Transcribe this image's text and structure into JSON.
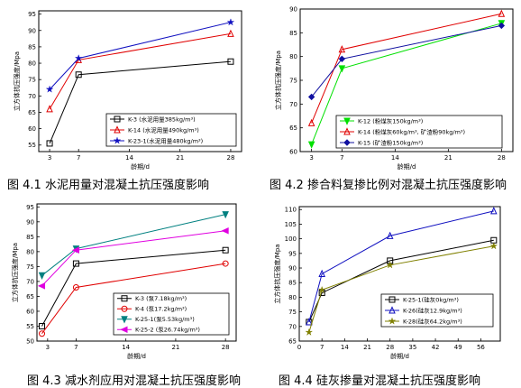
{
  "chart_data": [
    {
      "type": "line",
      "ylabel": "立方体抗压强度/Mpa",
      "xlabel": "龄期/d",
      "xticks": [
        3,
        7,
        14,
        21,
        28
      ],
      "yticks": [
        55,
        60,
        65,
        70,
        75,
        80,
        85,
        90,
        95
      ],
      "xlim": [
        1.5,
        29.5
      ],
      "ylim": [
        53,
        96
      ],
      "caption": "图 4.1 水泥用量对混凝土抗压强度影响",
      "series": [
        {
          "name": "K-3 (水泥用量385kg/m³)",
          "color": "#000000",
          "marker": "square",
          "x": [
            3,
            7,
            28
          ],
          "y": [
            55.5,
            76.5,
            80.5
          ]
        },
        {
          "name": "K-14 (水泥用量490kg/m³)",
          "color": "#e00000",
          "marker": "triangle",
          "x": [
            3,
            7,
            28
          ],
          "y": [
            66,
            81,
            89
          ]
        },
        {
          "name": "K-23-1(水泥用量480kg/m³)",
          "color": "#1010c0",
          "marker": "star",
          "x": [
            3,
            7,
            28
          ],
          "y": [
            72,
            81.5,
            92.5
          ]
        }
      ]
    },
    {
      "type": "line",
      "ylabel": "立方体抗压强度/Mpa",
      "xlabel": "龄期/d",
      "xticks": [
        3,
        7,
        14,
        21,
        28
      ],
      "yticks": [
        60,
        65,
        70,
        75,
        80,
        85,
        90
      ],
      "xlim": [
        1.5,
        29.5
      ],
      "ylim": [
        60,
        90
      ],
      "caption": "图 4.2 掺合料复掺比例对混凝土抗压强度影响",
      "series": [
        {
          "name": "K-12 (粉煤灰150kg/m³)",
          "color": "#00e000",
          "marker": "triangle-down",
          "x": [
            3,
            7,
            28
          ],
          "y": [
            61.5,
            77.5,
            87
          ]
        },
        {
          "name": "K-14 (粉煤灰60kg/m³, 矿渣粉90kg/m³)",
          "color": "#e00000",
          "marker": "triangle",
          "x": [
            3,
            7,
            28
          ],
          "y": [
            66,
            81.5,
            89
          ]
        },
        {
          "name": "K-15 (矿渣粉150kg/m³)",
          "color": "#1010a0",
          "marker": "diamond",
          "x": [
            3,
            7,
            28
          ],
          "y": [
            71.5,
            79.5,
            86.5
          ]
        }
      ]
    },
    {
      "type": "line",
      "ylabel": "立方体抗压强度/Mpa",
      "xlabel": "龄期/d",
      "xticks": [
        3,
        7,
        14,
        21,
        28
      ],
      "yticks": [
        50,
        55,
        60,
        65,
        70,
        75,
        80,
        85,
        90,
        95
      ],
      "xlim": [
        1.5,
        29.5
      ],
      "ylim": [
        50,
        96
      ],
      "caption": "图 4.3 减水剂应用对混凝土抗压强度影响",
      "series": [
        {
          "name": "K-3 (泵7.18kg/m³)",
          "color": "#000000",
          "marker": "square",
          "x": [
            2.2,
            7,
            28
          ],
          "y": [
            55,
            76,
            80.5
          ]
        },
        {
          "name": "K-4 (泵17.2kg/m³)",
          "color": "#e00000",
          "marker": "circle",
          "x": [
            2.2,
            7,
            28
          ],
          "y": [
            52.5,
            68,
            76
          ]
        },
        {
          "name": "K-25-1(泵5.53kg/m³)",
          "color": "#008080",
          "marker": "triangle-down",
          "x": [
            2.2,
            7,
            28
          ],
          "y": [
            72,
            81,
            92.5
          ]
        },
        {
          "name": "K-25-2 (泵26.74kg/m³)",
          "color": "#e000e0",
          "marker": "triangle-left",
          "x": [
            2.2,
            7,
            28
          ],
          "y": [
            68.5,
            80.5,
            87
          ]
        }
      ]
    },
    {
      "type": "line",
      "ylabel": "立方体抗压强度/Mpa",
      "xlabel": "龄期/d",
      "xticks": [
        0,
        7,
        14,
        21,
        28,
        35,
        42,
        49,
        56
      ],
      "yticks": [
        65,
        70,
        75,
        80,
        85,
        90,
        95,
        100,
        105,
        110
      ],
      "xlim": [
        0,
        62
      ],
      "ylim": [
        65,
        111
      ],
      "caption": "图 4.4 硅灰掺量对混凝土抗压强度影响",
      "series": [
        {
          "name": "K-25-1(硅灰0kg/m³)",
          "color": "#000000",
          "marker": "square",
          "x": [
            3,
            7,
            28,
            60
          ],
          "y": [
            71.5,
            81.5,
            92.5,
            99.5
          ]
        },
        {
          "name": "K-26(硅灰12.9kg/m³)",
          "color": "#1010c0",
          "marker": "triangle",
          "x": [
            3,
            7,
            28,
            60
          ],
          "y": [
            71.5,
            88,
            101,
            109.5
          ]
        },
        {
          "name": "K-28(硅灰64.2kg/m³)",
          "color": "#808000",
          "marker": "star",
          "x": [
            3,
            7,
            28,
            60
          ],
          "y": [
            68,
            82.5,
            91,
            97.5
          ]
        }
      ]
    }
  ]
}
